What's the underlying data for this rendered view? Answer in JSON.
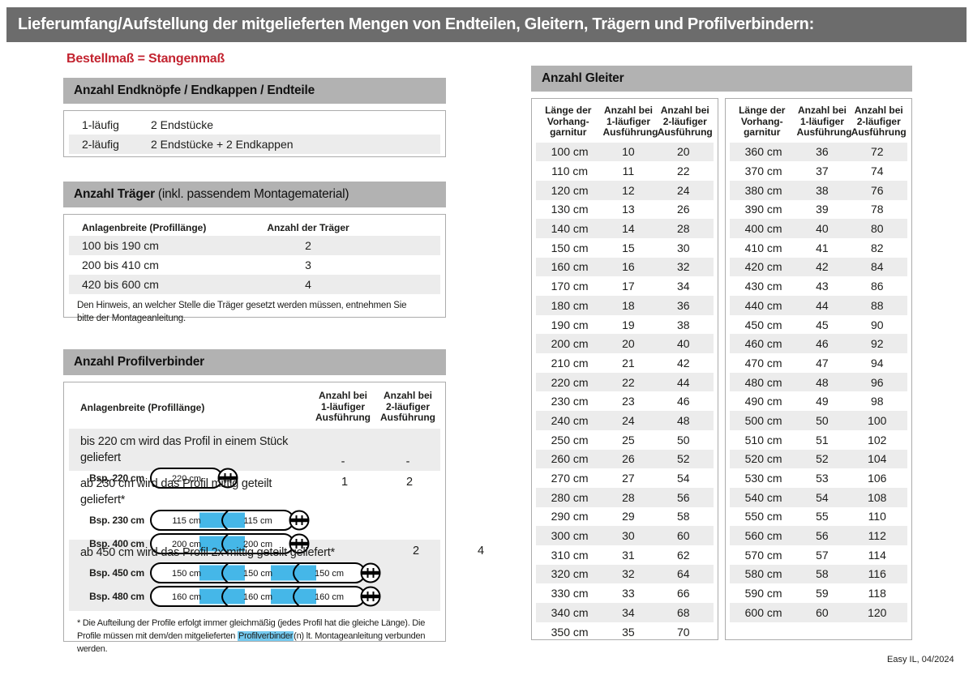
{
  "page": {
    "title": "Lieferumfang/Aufstellung der mitgelieferten Mengen von Endteilen, Gleitern, Trägern und Profilverbindern:",
    "subtitle": "Bestellmaß = Stangenmaß",
    "footer": "Easy IL, 04/2024"
  },
  "colors": {
    "title_bar": "#6c6c6c",
    "section_header": "#b2b2b2",
    "row_stripe": "#ececec",
    "box_border": "#acacac",
    "connector_blue": "#45b7e8",
    "highlight_blue": "#74caf0",
    "accent_red": "#c32430"
  },
  "endteile": {
    "header": "Anzahl Endknöpfe / Endkappen / Endteile",
    "rows": [
      [
        "1-läufig",
        "2 Endstücke"
      ],
      [
        "2-läufig",
        "2 Endstücke + 2 Endkappen"
      ]
    ]
  },
  "traeger": {
    "header_bold": "Anzahl Träger",
    "header_rest": "(inkl. passendem Montagematerial)",
    "col1": "Anlagenbreite (Profillänge)",
    "col2": "Anzahl der Träger",
    "rows": [
      [
        "100 bis 190 cm",
        "2"
      ],
      [
        "200 bis 410 cm",
        "3"
      ],
      [
        "420 bis 600 cm",
        "4"
      ]
    ],
    "note": "Den Hinweis, an welcher Stelle die Träger gesetzt werden müssen, entnehmen Sie bitte der Montageanleitung."
  },
  "profilverbinder": {
    "header": "Anzahl Profilverbinder",
    "col1": "Anlagenbreite (Profillänge)",
    "col2_lines": [
      "Anzahl bei",
      "1-läufiger",
      "Ausführung"
    ],
    "col3_lines": [
      "Anzahl bei",
      "2-läufiger",
      "Ausführung"
    ],
    "rows": [
      {
        "text": "bis 220 cm wird das Profil in einem Stück geliefert",
        "v1": "-",
        "v2": "-",
        "examples": [
          {
            "label": "Bsp. 220 cm",
            "segments": [
              "220 cm"
            ]
          }
        ]
      },
      {
        "text": "ab 230 cm wird das Profil mittig geteilt geliefert*",
        "v1": "1",
        "v2": "2",
        "examples": [
          {
            "label": "Bsp. 230 cm",
            "segments": [
              "115 cm",
              "115 cm"
            ]
          },
          {
            "label": "Bsp. 400 cm",
            "segments": [
              "200 cm",
              "200 cm"
            ]
          }
        ]
      },
      {
        "text": "ab 450 cm wird das Profil 2x mittig geteilt geliefert*",
        "v1": "2",
        "v2": "4",
        "examples": [
          {
            "label": "Bsp. 450 cm",
            "segments": [
              "150 cm",
              "150 cm",
              "150 cm"
            ]
          },
          {
            "label": "Bsp. 480 cm",
            "segments": [
              "160 cm",
              "160 cm",
              "160 cm"
            ]
          }
        ]
      }
    ],
    "footnote_pre": "* Die Aufteilung der Profile erfolgt immer gleichmäßig (jedes Profil hat die gleiche Länge). Die Profile müssen mit dem/den mitgelieferten ",
    "footnote_highlight": "Profilverbinder",
    "footnote_post": "(n) lt. Montageanleitung verbunden werden."
  },
  "gleiter": {
    "header": "Anzahl Gleiter",
    "col_header_lines": [
      [
        "Länge der",
        "Vorhang-",
        "garnitur"
      ],
      [
        "Anzahl bei",
        "1-läufiger",
        "Ausführung"
      ],
      [
        "Anzahl bei",
        "2-läufiger",
        "Ausführung"
      ]
    ],
    "table1": [
      [
        "100 cm",
        "10",
        "20"
      ],
      [
        "110 cm",
        "11",
        "22"
      ],
      [
        "120 cm",
        "12",
        "24"
      ],
      [
        "130 cm",
        "13",
        "26"
      ],
      [
        "140 cm",
        "14",
        "28"
      ],
      [
        "150 cm",
        "15",
        "30"
      ],
      [
        "160 cm",
        "16",
        "32"
      ],
      [
        "170 cm",
        "17",
        "34"
      ],
      [
        "180 cm",
        "18",
        "36"
      ],
      [
        "190 cm",
        "19",
        "38"
      ],
      [
        "200 cm",
        "20",
        "40"
      ],
      [
        "210 cm",
        "21",
        "42"
      ],
      [
        "220 cm",
        "22",
        "44"
      ],
      [
        "230 cm",
        "23",
        "46"
      ],
      [
        "240 cm",
        "24",
        "48"
      ],
      [
        "250 cm",
        "25",
        "50"
      ],
      [
        "260 cm",
        "26",
        "52"
      ],
      [
        "270 cm",
        "27",
        "54"
      ],
      [
        "280 cm",
        "28",
        "56"
      ],
      [
        "290 cm",
        "29",
        "58"
      ],
      [
        "300 cm",
        "30",
        "60"
      ],
      [
        "310 cm",
        "31",
        "62"
      ],
      [
        "320 cm",
        "32",
        "64"
      ],
      [
        "330 cm",
        "33",
        "66"
      ],
      [
        "340 cm",
        "34",
        "68"
      ],
      [
        "350 cm",
        "35",
        "70"
      ]
    ],
    "table2": [
      [
        "360 cm",
        "36",
        "72"
      ],
      [
        "370 cm",
        "37",
        "74"
      ],
      [
        "380 cm",
        "38",
        "76"
      ],
      [
        "390 cm",
        "39",
        "78"
      ],
      [
        "400 cm",
        "40",
        "80"
      ],
      [
        "410 cm",
        "41",
        "82"
      ],
      [
        "420 cm",
        "42",
        "84"
      ],
      [
        "430 cm",
        "43",
        "86"
      ],
      [
        "440 cm",
        "44",
        "88"
      ],
      [
        "450 cm",
        "45",
        "90"
      ],
      [
        "460 cm",
        "46",
        "92"
      ],
      [
        "470 cm",
        "47",
        "94"
      ],
      [
        "480 cm",
        "48",
        "96"
      ],
      [
        "490 cm",
        "49",
        "98"
      ],
      [
        "500 cm",
        "50",
        "100"
      ],
      [
        "510 cm",
        "51",
        "102"
      ],
      [
        "520 cm",
        "52",
        "104"
      ],
      [
        "530 cm",
        "53",
        "106"
      ],
      [
        "540 cm",
        "54",
        "108"
      ],
      [
        "550 cm",
        "55",
        "110"
      ],
      [
        "560 cm",
        "56",
        "112"
      ],
      [
        "570 cm",
        "57",
        "114"
      ],
      [
        "580 cm",
        "58",
        "116"
      ],
      [
        "590 cm",
        "59",
        "118"
      ],
      [
        "600 cm",
        "60",
        "120"
      ]
    ]
  }
}
